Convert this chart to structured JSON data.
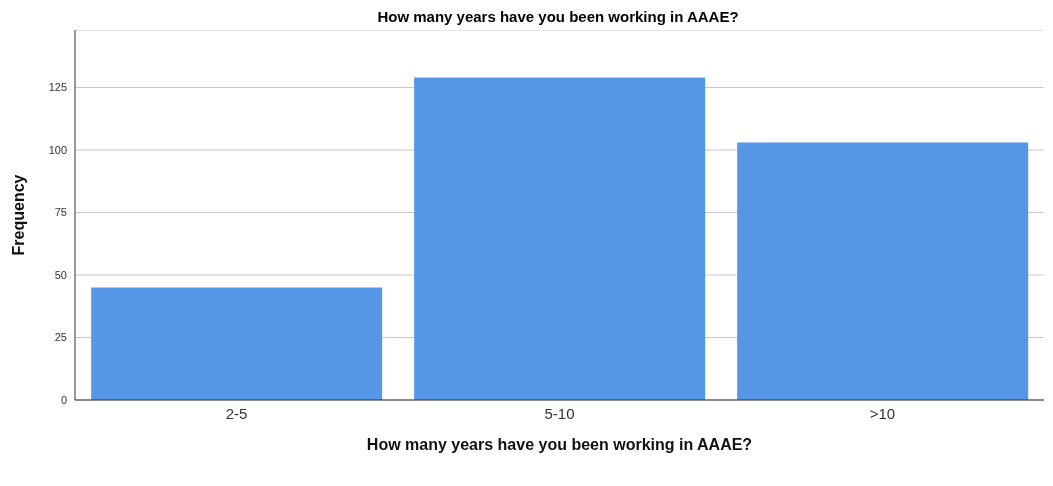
{
  "chart_data": {
    "type": "bar",
    "title": "How many years have you been working in AAAE?",
    "xlabel": "How many years have you been working in AAAE?",
    "ylabel": "Frequency",
    "categories": [
      "2-5",
      "5-10",
      ">10"
    ],
    "values": [
      45,
      129,
      103
    ],
    "color": "#5596e6",
    "ylim": [
      0,
      148
    ],
    "yticks": [
      0,
      25,
      50,
      75,
      100,
      125
    ],
    "grid": "y"
  }
}
